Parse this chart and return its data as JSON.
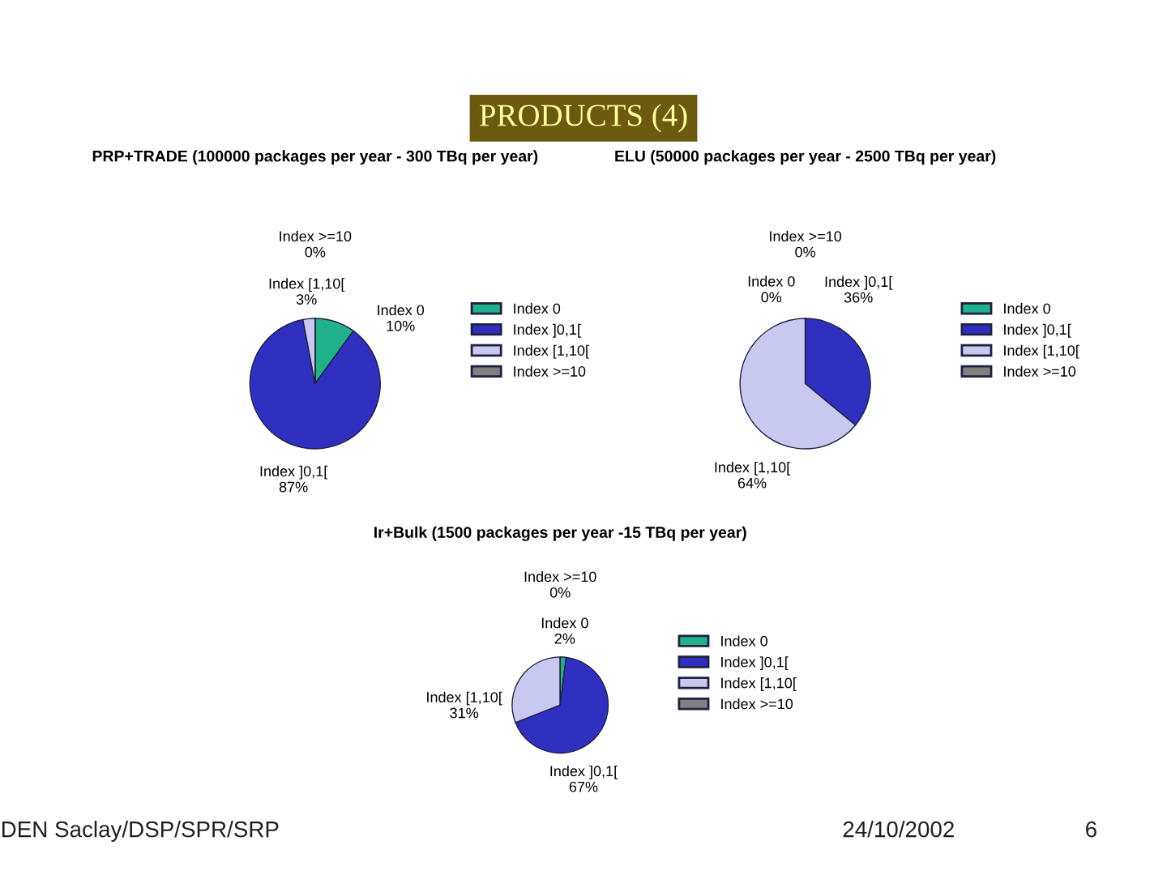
{
  "chart_data": [
    {
      "type": "pie",
      "title": "PRP+TRADE (100000 packages per year - 300 TBq per year)",
      "categories": [
        "Index 0",
        "Index ]0,1[",
        "Index [1,10[",
        "Index >=10"
      ],
      "values": [
        10,
        87,
        3,
        0
      ],
      "value_labels": [
        "10%",
        "87%",
        "3%",
        "0%"
      ],
      "colors": [
        "#20b08a",
        "#3030c0",
        "#c8c8f0",
        "#808080"
      ],
      "data_labels": true,
      "legend": "right",
      "annotations": [
        "PRODUCTS (4)",
        "DEN Saclay/DSP/SPR/SRP",
        "24/10/2002",
        "6"
      ]
    },
    {
      "type": "pie",
      "title": "ELU (50000 packages per year - 2500 TBq per year)",
      "categories": [
        "Index 0",
        "Index ]0,1[",
        "Index [1,10[",
        "Index >=10"
      ],
      "values": [
        0,
        36,
        64,
        0
      ],
      "value_labels": [
        "0%",
        "36%",
        "64%",
        "0%"
      ],
      "colors": [
        "#20b08a",
        "#3030c0",
        "#c8c8f0",
        "#808080"
      ],
      "data_labels": true,
      "legend": "right"
    },
    {
      "type": "pie",
      "title": "Ir+Bulk (1500 packages per year -15 TBq per year)",
      "categories": [
        "Index 0",
        "Index ]0,1[",
        "Index [1,10[",
        "Index >=10"
      ],
      "values": [
        2,
        67,
        31,
        0
      ],
      "value_labels": [
        "2%",
        "67%",
        "31%",
        "0%"
      ],
      "colors": [
        "#20b08a",
        "#3030c0",
        "#c8c8f0",
        "#808080"
      ],
      "data_labels": true,
      "legend": "right"
    }
  ]
}
